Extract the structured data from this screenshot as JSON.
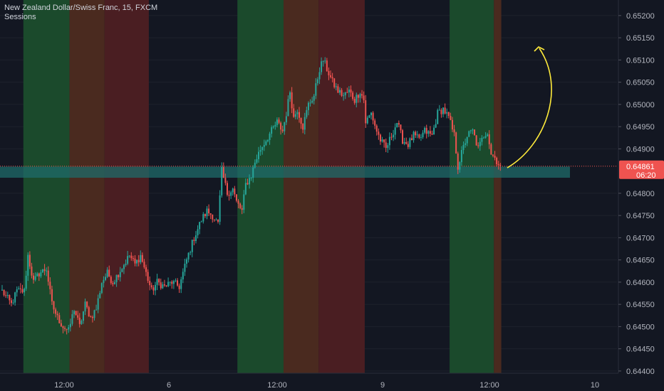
{
  "legend": {
    "symbol_line": "New Zealand Dollar/Swiss Franc, 15, FXCM",
    "indicator": "Sessions"
  },
  "colors": {
    "background": "#131722",
    "up": "#26a69a",
    "down": "#ef5350",
    "axis_text": "#b2b5be",
    "grid": "#1e222d",
    "session_green": "#1b4a2c",
    "session_brown": "#4a2a1f",
    "session_red": "#4a1e22",
    "zone": "#1f6b6a",
    "arrow": "#ffeb3b",
    "price_label_bg": "#ef5350"
  },
  "chart_data": {
    "type": "candlestick",
    "title": "New Zealand Dollar/Swiss Franc, 15, FXCM",
    "y_range": [
      0.64395,
      0.65235
    ],
    "y_ticks": [
      "0.65200",
      "0.65150",
      "0.65100",
      "0.65050",
      "0.65000",
      "0.64950",
      "0.64900",
      "0.64800",
      "0.64750",
      "0.64700",
      "0.64650",
      "0.64600",
      "0.64550",
      "0.64500",
      "0.64450",
      "0.64400"
    ],
    "x_ticks": [
      "12:00",
      "6",
      "12:00",
      "9",
      "12:00",
      "10"
    ],
    "current_price": "0.64861",
    "countdown": "06:20",
    "zone_range": [
      0.64835,
      0.6486
    ],
    "sessions": [
      {
        "color": "green",
        "start_index": 12,
        "end_index": 36
      },
      {
        "color": "brown",
        "start_index": 37,
        "end_index": 55
      },
      {
        "color": "red",
        "start_index": 56,
        "end_index": 79
      },
      {
        "color": "green",
        "start_index": 128,
        "end_index": 152
      },
      {
        "color": "brown",
        "start_index": 153,
        "end_index": 171
      },
      {
        "color": "red",
        "start_index": 172,
        "end_index": 196
      },
      {
        "color": "green",
        "start_index": 243,
        "end_index": 266
      },
      {
        "color": "brown",
        "start_index": 267,
        "end_index": 270
      }
    ],
    "keypoints": [
      [
        0,
        0.6458
      ],
      [
        5,
        0.6455
      ],
      [
        8,
        0.6458
      ],
      [
        12,
        0.6458
      ],
      [
        14,
        0.6466
      ],
      [
        17,
        0.646
      ],
      [
        20,
        0.6462
      ],
      [
        24,
        0.6463
      ],
      [
        27,
        0.6455
      ],
      [
        30,
        0.6452
      ],
      [
        33,
        0.645
      ],
      [
        36,
        0.6449
      ],
      [
        39,
        0.6454
      ],
      [
        42,
        0.645
      ],
      [
        45,
        0.6455
      ],
      [
        48,
        0.6452
      ],
      [
        51,
        0.6454
      ],
      [
        54,
        0.646
      ],
      [
        57,
        0.6462
      ],
      [
        60,
        0.646
      ],
      [
        63,
        0.6462
      ],
      [
        66,
        0.6464
      ],
      [
        69,
        0.6466
      ],
      [
        72,
        0.6464
      ],
      [
        75,
        0.6466
      ],
      [
        78,
        0.6462
      ],
      [
        81,
        0.6458
      ],
      [
        84,
        0.646
      ],
      [
        88,
        0.6459
      ],
      [
        92,
        0.646
      ],
      [
        96,
        0.6459
      ],
      [
        100,
        0.6465
      ],
      [
        104,
        0.647
      ],
      [
        108,
        0.6474
      ],
      [
        111,
        0.6476
      ],
      [
        114,
        0.6475
      ],
      [
        117,
        0.6473
      ],
      [
        119,
        0.6485
      ],
      [
        122,
        0.648
      ],
      [
        125,
        0.6481
      ],
      [
        127,
        0.6478
      ],
      [
        130,
        0.6476
      ],
      [
        132,
        0.6482
      ],
      [
        135,
        0.6484
      ],
      [
        137,
        0.6487
      ],
      [
        140,
        0.649
      ],
      [
        143,
        0.6492
      ],
      [
        146,
        0.6494
      ],
      [
        149,
        0.6496
      ],
      [
        152,
        0.6494
      ],
      [
        154,
        0.6498
      ],
      [
        156,
        0.6503
      ],
      [
        158,
        0.6497
      ],
      [
        160,
        0.6499
      ],
      [
        163,
        0.6495
      ],
      [
        166,
        0.65
      ],
      [
        169,
        0.6502
      ],
      [
        172,
        0.6508
      ],
      [
        174,
        0.651
      ],
      [
        176,
        0.6508
      ],
      [
        179,
        0.6505
      ],
      [
        182,
        0.6503
      ],
      [
        185,
        0.6502
      ],
      [
        188,
        0.6503
      ],
      [
        191,
        0.6501
      ],
      [
        194,
        0.6503
      ],
      [
        196,
        0.6501
      ],
      [
        197,
        0.6496
      ],
      [
        200,
        0.6498
      ],
      [
        203,
        0.6494
      ],
      [
        205,
        0.6492
      ],
      [
        208,
        0.649
      ],
      [
        211,
        0.6493
      ],
      [
        214,
        0.6496
      ],
      [
        217,
        0.6492
      ],
      [
        220,
        0.6491
      ],
      [
        223,
        0.6493
      ],
      [
        226,
        0.6492
      ],
      [
        229,
        0.6494
      ],
      [
        233,
        0.6493
      ],
      [
        236,
        0.6498
      ],
      [
        239,
        0.6499
      ],
      [
        242,
        0.6497
      ],
      [
        245,
        0.6493
      ],
      [
        247,
        0.6486
      ],
      [
        249,
        0.6489
      ],
      [
        252,
        0.6493
      ],
      [
        255,
        0.6494
      ],
      [
        258,
        0.649
      ],
      [
        261,
        0.6493
      ],
      [
        263,
        0.6494
      ],
      [
        265,
        0.6489
      ],
      [
        267,
        0.6488
      ],
      [
        270,
        0.6486
      ]
    ]
  },
  "yellow_arrow": "upward curved arrow"
}
